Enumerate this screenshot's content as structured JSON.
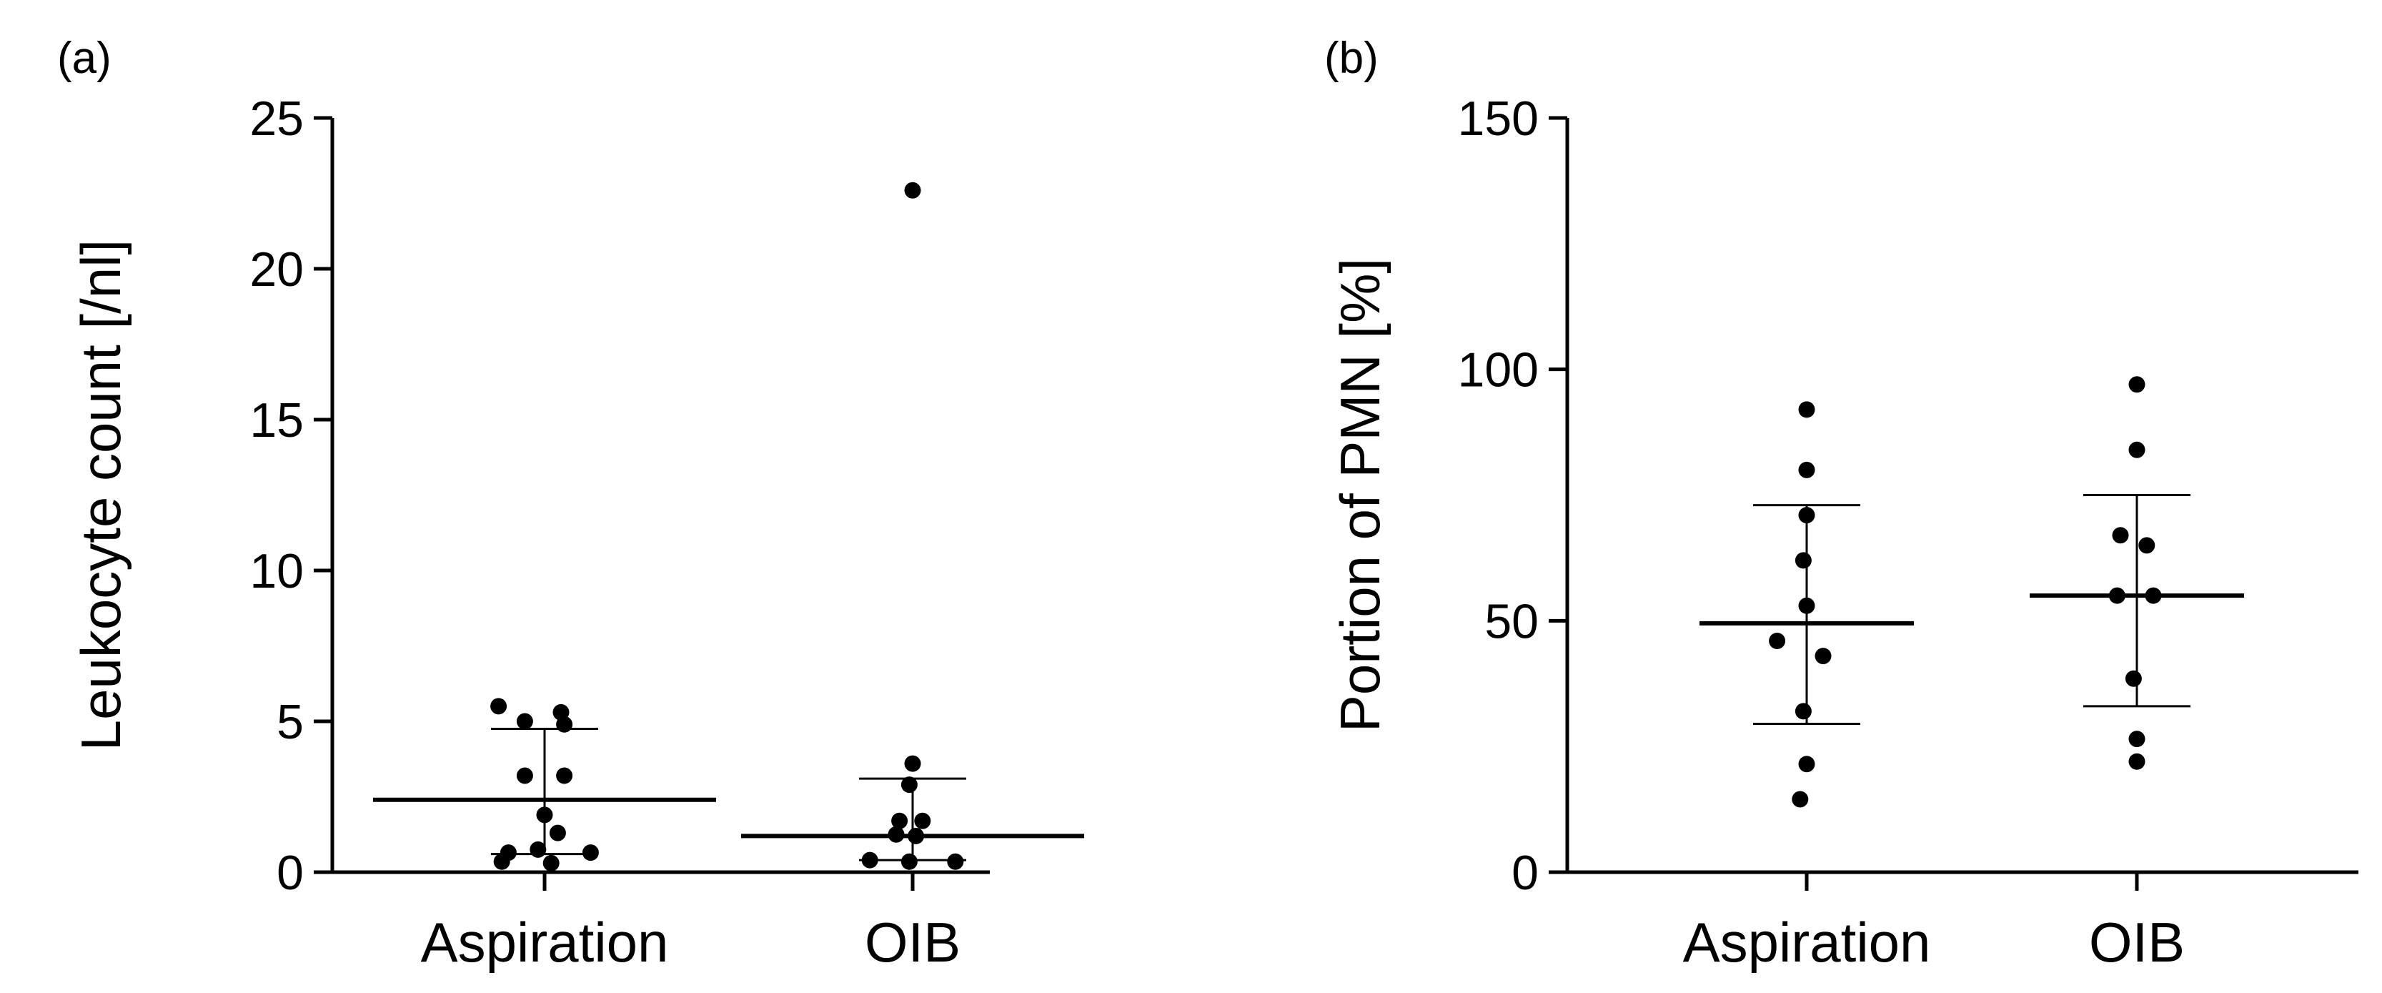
{
  "chart_data": [
    {
      "type": "scatter",
      "panel_label": "(a)",
      "xlabel": "",
      "ylabel": "Leukocyte count [/nl]",
      "ylim": [
        0,
        25
      ],
      "yticks": [
        0,
        5,
        10,
        15,
        20,
        25
      ],
      "categories": [
        "Aspiration",
        "OIB"
      ],
      "groups": [
        {
          "category": "Aspiration",
          "mean": 2.4,
          "sd_upper": 4.75,
          "sd_lower": 0.6,
          "points": [
            {
              "dx": -0.14,
              "y": 5.5
            },
            {
              "dx": 0.05,
              "y": 5.3
            },
            {
              "dx": -0.06,
              "y": 5.0
            },
            {
              "dx": 0.06,
              "y": 4.9
            },
            {
              "dx": -0.06,
              "y": 3.2
            },
            {
              "dx": 0.06,
              "y": 3.2
            },
            {
              "dx": 0.0,
              "y": 1.9
            },
            {
              "dx": 0.04,
              "y": 1.3
            },
            {
              "dx": -0.02,
              "y": 0.75
            },
            {
              "dx": -0.11,
              "y": 0.65
            },
            {
              "dx": 0.14,
              "y": 0.65
            },
            {
              "dx": -0.13,
              "y": 0.35
            },
            {
              "dx": 0.02,
              "y": 0.3
            }
          ]
        },
        {
          "category": "OIB",
          "mean": 1.2,
          "sd_upper": 3.1,
          "sd_lower": 0.4,
          "points": [
            {
              "dx": 0.0,
              "y": 22.6
            },
            {
              "dx": 0.0,
              "y": 3.6
            },
            {
              "dx": -0.01,
              "y": 2.9
            },
            {
              "dx": -0.04,
              "y": 1.7
            },
            {
              "dx": 0.03,
              "y": 1.7
            },
            {
              "dx": -0.05,
              "y": 1.25
            },
            {
              "dx": 0.01,
              "y": 1.2
            },
            {
              "dx": -0.13,
              "y": 0.4
            },
            {
              "dx": -0.01,
              "y": 0.35
            },
            {
              "dx": 0.13,
              "y": 0.35
            }
          ]
        }
      ]
    },
    {
      "type": "scatter",
      "panel_label": "(b)",
      "xlabel": "",
      "ylabel": "Portion of PMN [%]",
      "ylim": [
        0,
        150
      ],
      "yticks": [
        0,
        50,
        100,
        150
      ],
      "categories": [
        "Aspiration",
        "OIB"
      ],
      "groups": [
        {
          "category": "Aspiration",
          "mean": 49.5,
          "sd_upper": 73,
          "sd_lower": 29.5,
          "points": [
            {
              "dx": 0.0,
              "y": 92
            },
            {
              "dx": 0.0,
              "y": 80
            },
            {
              "dx": 0.0,
              "y": 71
            },
            {
              "dx": -0.01,
              "y": 62
            },
            {
              "dx": 0.0,
              "y": 53
            },
            {
              "dx": -0.09,
              "y": 46
            },
            {
              "dx": 0.05,
              "y": 43
            },
            {
              "dx": -0.01,
              "y": 32
            },
            {
              "dx": 0.0,
              "y": 21.5
            },
            {
              "dx": -0.02,
              "y": 14.5
            }
          ]
        },
        {
          "category": "OIB",
          "mean": 55,
          "sd_upper": 75,
          "sd_lower": 33,
          "points": [
            {
              "dx": 0.0,
              "y": 97
            },
            {
              "dx": 0.0,
              "y": 84
            },
            {
              "dx": -0.05,
              "y": 67
            },
            {
              "dx": 0.03,
              "y": 65
            },
            {
              "dx": -0.06,
              "y": 55
            },
            {
              "dx": 0.05,
              "y": 55
            },
            {
              "dx": -0.01,
              "y": 38.5
            },
            {
              "dx": 0.0,
              "y": 26.5
            },
            {
              "dx": 0.0,
              "y": 22
            }
          ]
        }
      ]
    }
  ]
}
